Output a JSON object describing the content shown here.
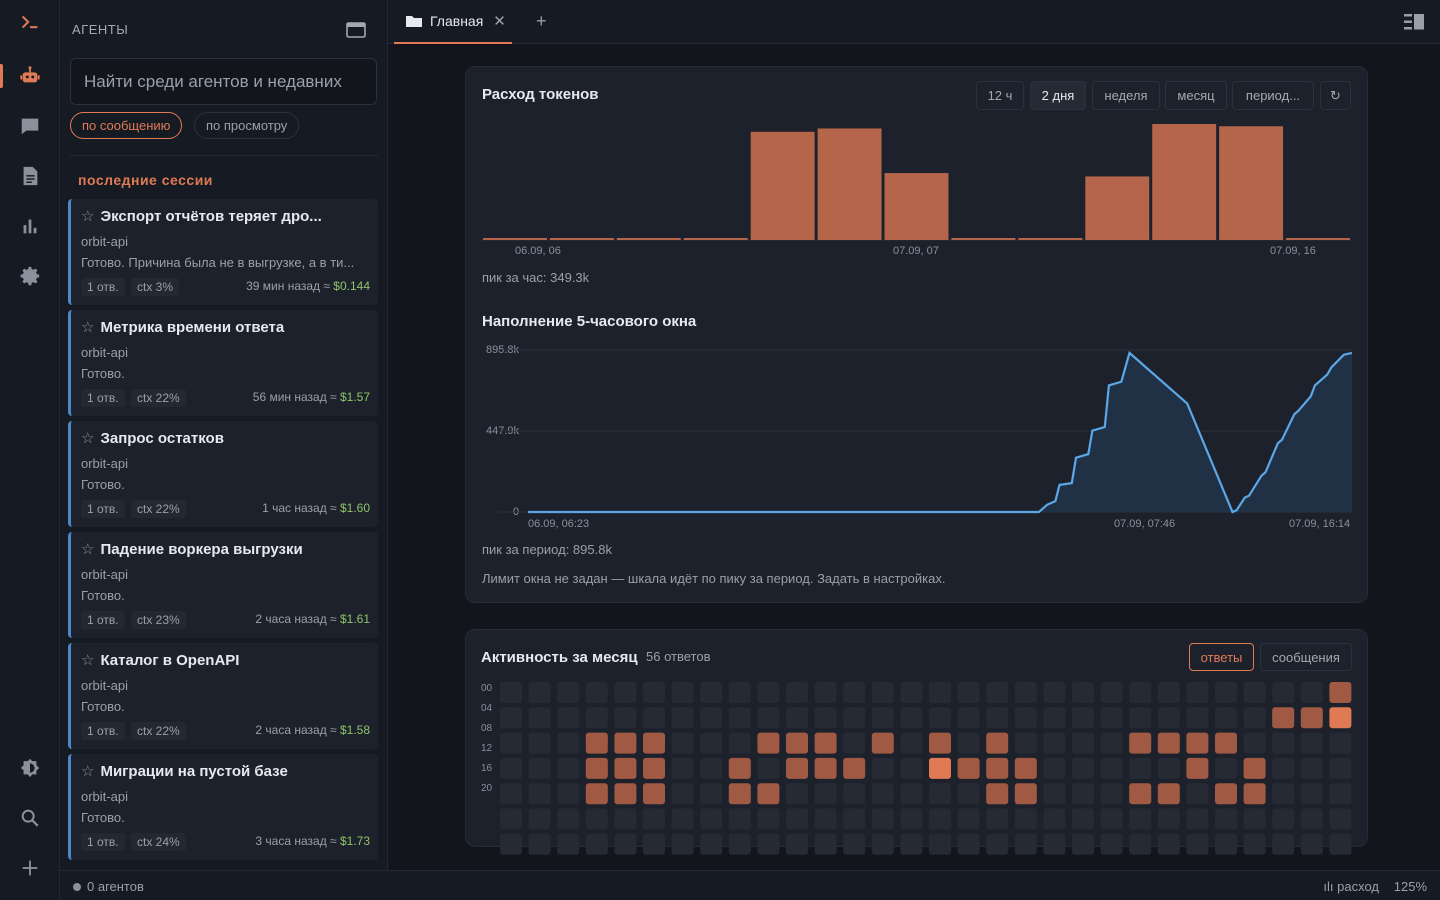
{
  "app": {
    "logo": "terminal-prompt-icon"
  },
  "rail": {
    "top": [
      {
        "id": "agents",
        "icon": "robot-icon",
        "active": true
      },
      {
        "id": "chat",
        "icon": "chat-bubble-icon",
        "active": false
      },
      {
        "id": "docs",
        "icon": "document-icon",
        "active": false
      },
      {
        "id": "stats",
        "icon": "bar-chart-icon",
        "active": false
      },
      {
        "id": "settings",
        "icon": "gear-icon",
        "active": false
      }
    ],
    "bottom": [
      {
        "id": "theme",
        "icon": "theme-toggle-icon"
      },
      {
        "id": "search",
        "icon": "search-icon"
      },
      {
        "id": "add",
        "icon": "plus-icon"
      }
    ]
  },
  "sidebar": {
    "heading": "АГЕНТЫ",
    "search_placeholder": "Найти среди агентов и недавних",
    "filters": [
      {
        "label": "по сообщению",
        "active": true
      },
      {
        "label": "по просмотру",
        "active": false
      }
    ],
    "section_title": "последние сессии",
    "sessions": [
      {
        "title": "Экспорт отчётов теряет дро...",
        "project": "orbit-api",
        "summary": "Готово. Причина была не в выгрузке, а в ти...",
        "replies": "1 отв.",
        "ctx": "ctx 3%",
        "time": "39 мин назад ≈",
        "cost": "$0.144"
      },
      {
        "title": "Метрика времени ответа",
        "project": "orbit-api",
        "summary": "Готово.",
        "replies": "1 отв.",
        "ctx": "ctx 22%",
        "time": "56 мин назад ≈",
        "cost": "$1.57"
      },
      {
        "title": "Запрос остатков",
        "project": "orbit-api",
        "summary": "Готово.",
        "replies": "1 отв.",
        "ctx": "ctx 22%",
        "time": "1 час назад ≈",
        "cost": "$1.60"
      },
      {
        "title": "Падение воркера выгрузки",
        "project": "orbit-api",
        "summary": "Готово.",
        "replies": "1 отв.",
        "ctx": "ctx 23%",
        "time": "2 часа назад ≈",
        "cost": "$1.61"
      },
      {
        "title": "Каталог в OpenAPI",
        "project": "orbit-api",
        "summary": "Готово.",
        "replies": "1 отв.",
        "ctx": "ctx 22%",
        "time": "2 часа назад ≈",
        "cost": "$1.58"
      },
      {
        "title": "Миграции на пустой базе",
        "project": "orbit-api",
        "summary": "Готово.",
        "replies": "1 отв.",
        "ctx": "ctx 24%",
        "time": "3 часа назад ≈",
        "cost": "$1.73"
      }
    ]
  },
  "tabs": {
    "items": [
      {
        "label": "Главная",
        "icon": "folder-icon"
      }
    ],
    "add_label": "+",
    "close_glyph": "✕"
  },
  "token_card": {
    "title": "Расход токенов",
    "ranges": [
      {
        "label": "12 ч",
        "active": false
      },
      {
        "label": "2 дня",
        "active": true
      },
      {
        "label": "неделя",
        "active": false
      },
      {
        "label": "месяц",
        "active": false
      },
      {
        "label": "период...",
        "active": false
      }
    ],
    "refresh_glyph": "↻",
    "peak_text": "пик за час: 349.3k",
    "window_title": "Наполнение 5-часового окна",
    "window_peak_text": "пик за период: 895.8k",
    "window_note": "Лимит окна не задан — шкала идёт по пику за период. Задать в настройках."
  },
  "chart_data": [
    {
      "type": "bar",
      "title": "Расход токенов",
      "x_tick_labels": [
        "06.09, 06",
        "07.09, 07",
        "07.09, 16"
      ],
      "categories": [
        "1",
        "2",
        "3",
        "4",
        "5",
        "6",
        "7",
        "8",
        "9",
        "10",
        "11",
        "12",
        "13"
      ],
      "values": [
        0.01,
        0.01,
        0.01,
        0.01,
        0.97,
        1.0,
        0.6,
        0.01,
        0.01,
        0.57,
        1.04,
        1.02,
        0.01
      ],
      "value_units": "relative to peak",
      "peak": "349.3k"
    },
    {
      "type": "area",
      "title": "Наполнение 5-часового окна",
      "y_ticks": [
        "895.8k",
        "447.9k",
        "0"
      ],
      "ylim": [
        0,
        895.8
      ],
      "y_units": "k tokens",
      "x_tick_labels": [
        "06.09, 06:23",
        "07.09, 07:46",
        "07.09, 16:14"
      ],
      "x": [
        0,
        0.62,
        0.63,
        0.64,
        0.645,
        0.66,
        0.665,
        0.68,
        0.685,
        0.7,
        0.705,
        0.72,
        0.73,
        0.8,
        0.855,
        0.86,
        0.87,
        0.875,
        0.89,
        0.895,
        0.91,
        0.915,
        0.93,
        0.935,
        0.95,
        0.955,
        0.97,
        0.975,
        0.99,
        1
      ],
      "y": [
        0,
        0,
        40,
        60,
        150,
        160,
        300,
        320,
        450,
        470,
        700,
        720,
        880,
        600,
        0,
        10,
        80,
        90,
        200,
        220,
        380,
        400,
        540,
        560,
        640,
        700,
        760,
        800,
        870,
        880
      ]
    },
    {
      "type": "heatmap",
      "title": "Активность за месяц",
      "row_labels": [
        "00",
        "04",
        "08",
        "12",
        "16",
        "20"
      ],
      "rows": [
        [
          0,
          0,
          0,
          0,
          0,
          0,
          0,
          0,
          0,
          0,
          0,
          0,
          0,
          0,
          0,
          0,
          0,
          0,
          0,
          0,
          0,
          0,
          0,
          0,
          0,
          0,
          0,
          0,
          0,
          2
        ],
        [
          0,
          0,
          0,
          0,
          0,
          0,
          0,
          0,
          0,
          0,
          0,
          0,
          0,
          0,
          0,
          0,
          0,
          0,
          0,
          0,
          0,
          0,
          0,
          0,
          0,
          0,
          0,
          2,
          2,
          3
        ],
        [
          0,
          0,
          0,
          2,
          2,
          2,
          0,
          0,
          0,
          2,
          2,
          2,
          0,
          2,
          0,
          2,
          0,
          2,
          0,
          0,
          0,
          0,
          2,
          2,
          2,
          2,
          0,
          0,
          0,
          0
        ],
        [
          0,
          0,
          0,
          2,
          2,
          2,
          0,
          0,
          2,
          0,
          2,
          2,
          2,
          0,
          0,
          3,
          2,
          2,
          2,
          0,
          0,
          0,
          0,
          0,
          2,
          0,
          2,
          0,
          0,
          0
        ],
        [
          0,
          0,
          0,
          2,
          2,
          2,
          0,
          0,
          2,
          2,
          0,
          0,
          0,
          0,
          0,
          0,
          0,
          2,
          2,
          0,
          0,
          0,
          2,
          2,
          0,
          2,
          2,
          0,
          0,
          0
        ],
        [
          0,
          0,
          0,
          0,
          0,
          0,
          0,
          0,
          0,
          0,
          0,
          0,
          0,
          0,
          0,
          0,
          0,
          0,
          0,
          0,
          0,
          0,
          0,
          0,
          0,
          0,
          0,
          0,
          0,
          0
        ]
      ]
    }
  ],
  "activity_card": {
    "title": "Активность за месяц",
    "count": "56 ответов",
    "toggles": [
      {
        "label": "ответы",
        "active": true
      },
      {
        "label": "сообщения",
        "active": false
      }
    ]
  },
  "statusbar": {
    "agents": "0 агентов",
    "spend_label": "ılı расход",
    "zoom": "125%"
  },
  "colors": {
    "accent": "#e07a55",
    "bar": "#b5654a",
    "line": "#5ba7e8",
    "heat_low": "#262a34",
    "heat_mid": "#a05a43",
    "heat_high": "#e07a55",
    "session_border": "#4a88c8",
    "cost": "#8fc36a"
  }
}
